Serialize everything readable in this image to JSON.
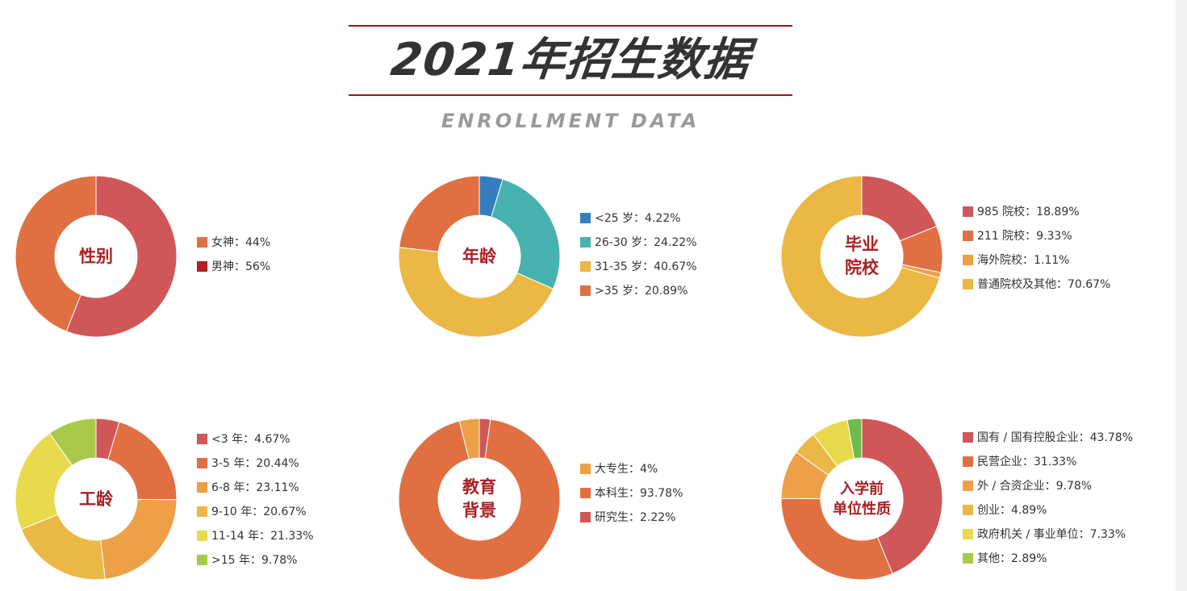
{
  "header": {
    "title": "2021年招生数据",
    "subtitle": "ENROLLMENT DATA",
    "rule_color": "#8f1a1c"
  },
  "colors": {
    "center_label": "#a82125",
    "red": "#d05757",
    "dark_red": "#b21f24",
    "orange": "#e07042",
    "light_orange": "#eda048",
    "yellow_orange": "#ebb845",
    "yellow": "#e8da4c",
    "green": "#a9c94a",
    "bright_green": "#6fbb4c",
    "teal": "#47b3b0",
    "blue": "#337fbd"
  },
  "chart_data": [
    {
      "type": "pie",
      "variant": "donut",
      "title": "性别",
      "categories": [
        "女神",
        "男神"
      ],
      "values": [
        44,
        56
      ],
      "slice_order_clockwise_from_top": [
        "男神",
        "女神"
      ],
      "colors": [
        "#e07042",
        "#d05757"
      ],
      "legend_colors": [
        "#e07042",
        "#b21f24"
      ],
      "legend": [
        "女神：44%",
        "男神：56%"
      ],
      "legend_position": "right",
      "unit": "%"
    },
    {
      "type": "pie",
      "variant": "donut",
      "title": "年龄",
      "categories": [
        "<25 岁",
        "26-30 岁",
        "31-35 岁",
        ">35 岁"
      ],
      "values": [
        4.22,
        24.22,
        40.67,
        20.89
      ],
      "colors": [
        "#337fbd",
        "#47b3b0",
        "#ebb845",
        "#e07042"
      ],
      "legend": [
        "<25 岁：4.22%",
        "26-30 岁：24.22%",
        "31-35 岁：40.67%",
        ">35 岁：20.89%"
      ],
      "legend_position": "right",
      "unit": "%"
    },
    {
      "type": "pie",
      "variant": "donut",
      "title": "毕业\n院校",
      "categories": [
        "985 院校",
        "211 院校",
        "海外院校",
        "普通院校及其他"
      ],
      "values": [
        18.89,
        9.33,
        1.11,
        70.67
      ],
      "colors": [
        "#d05757",
        "#e07042",
        "#eda048",
        "#ebb845"
      ],
      "legend": [
        "985 院校：18.89%",
        "211 院校：9.33%",
        "海外院校：1.11%",
        "普通院校及其他：70.67%"
      ],
      "legend_position": "right",
      "unit": "%"
    },
    {
      "type": "pie",
      "variant": "donut",
      "title": "工龄",
      "categories": [
        "<3 年",
        "3-5 年",
        "6-8 年",
        "9-10 年",
        "11-14 年",
        ">15 年"
      ],
      "values": [
        4.67,
        20.44,
        23.11,
        20.67,
        21.33,
        9.78
      ],
      "colors": [
        "#d05757",
        "#e07042",
        "#eda048",
        "#ebb845",
        "#e8da4c",
        "#a9c94a"
      ],
      "legend": [
        "<3 年：4.67%",
        "3-5 年：20.44%",
        "6-8 年：23.11%",
        "9-10 年：20.67%",
        "11-14 年：21.33%",
        ">15 年：9.78%"
      ],
      "legend_position": "right",
      "unit": "%"
    },
    {
      "type": "pie",
      "variant": "donut",
      "title": "教育\n背景",
      "categories": [
        "大专生",
        "本科生",
        "研究生"
      ],
      "values": [
        4,
        93.78,
        2.22
      ],
      "slice_order_clockwise_from_top": [
        "研究生",
        "本科生",
        "大专生"
      ],
      "colors": [
        "#eda048",
        "#e07042",
        "#d05757"
      ],
      "legend": [
        "大专生：4%",
        "本科生：93.78%",
        "研究生：2.22%"
      ],
      "legend_position": "right",
      "unit": "%"
    },
    {
      "type": "pie",
      "variant": "donut",
      "title": "入学前\n单位性质",
      "categories": [
        "国有 / 国有控股企业",
        "民营企业",
        "外 / 合资企业",
        "创业",
        "政府机关 / 事业单位",
        "其他"
      ],
      "values": [
        43.78,
        31.33,
        9.78,
        4.89,
        7.33,
        2.89
      ],
      "colors": [
        "#d05757",
        "#e07042",
        "#eda048",
        "#ebb845",
        "#e8da4c",
        "#6fbb4c"
      ],
      "legend_colors": [
        "#d05757",
        "#e07042",
        "#eda048",
        "#ebb845",
        "#e8da4c",
        "#a9c94a"
      ],
      "legend": [
        "国有 / 国有控股企业：43.78%",
        "民营企业：31.33%",
        "外 / 合资企业：9.78%",
        "创业：4.89%",
        "政府机关 / 事业单位：7.33%",
        "其他：2.89%"
      ],
      "legend_position": "right",
      "unit": "%"
    }
  ]
}
